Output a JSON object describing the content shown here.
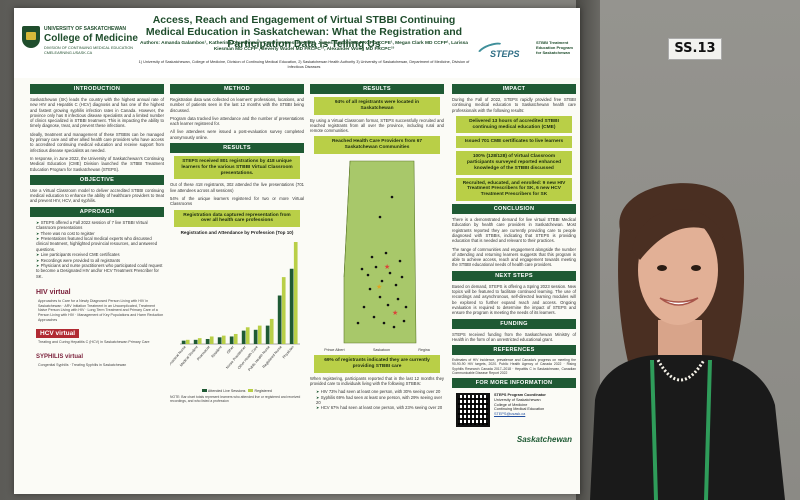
{
  "poster": {
    "university": "UNIVERSITY OF SASKATCHEWAN",
    "college": "College of Medicine",
    "college_sub": "DIVISION OF CONTINUING MEDICAL EDUCATION CMELEARNING.USASK.CA",
    "title": "Access, Reach and Engagement of Virtual STBBI Continuing Medical Education in Saskatchewan: What the Registration and Participation Data is Telling Us",
    "authors": "Authors: Amanda Galambos¹, Katherine Churchman¹, Carolyn Hoessler PhD¹, James Barton MD FRCPC CCPE¹, Megan Clark MD CCFP¹, Larissa Kiesman MD CCFP¹, Beverly Wudel MD FRCPC²³, Alexander Wong MD FRCPC²³",
    "affiliations": "1) University of Saskatchewan, College of Medicine, Division of Continuing Medical Education, 2) Saskatchewan Health Authority 3) University of Saskatchewan, Department of Medicine, Division of Infectious Diseases",
    "steps_logo": "STEPS",
    "steps_desc": "STBBI Treatment Education Program for Saskatchewan"
  },
  "introduction": {
    "heading": "INTRODUCTION",
    "p1": "Saskatchewan (SK) leads the country with the highest annual rate of new HIV and Hepatitis C (HCV) diagnosis and has one of the highest and fastest growing syphilis infection rates in Canada. However, the province only has 8 infectious disease specialists and a limited number of clinics specialized in STBBI treatment. This is impacting the ability to timely diagnose, treat, and prevent these infections.",
    "p2": "Ideally, treatment and management of these STBBIs can be managed by primary care and other allied health care providers who have access to accredited continuing medical education and receive support from infectious disease specialists as needed.",
    "p3": "In response, in June 2022, the University of Saskatchewan's Continuing Medical Education (CME) Division launched the STBBI Treatment Education Program for Saskatchewan (STEPS)."
  },
  "objective": {
    "heading": "OBJECTIVE",
    "p1": "Use a Virtual Classroom model to deliver accredited STBBI continuing medical education to enhance the ability of healthcare providers to treat and prevent HIV, HCV, and syphilis."
  },
  "approach": {
    "heading": "APPROACH",
    "bullets": [
      "STEPS offered a Fall 2022 session of 7 live STBBI Virtual Classroom presentations",
      "There was no cost to register",
      "Presentations featured local medical experts who discussed clinical treatment, highlighted provincial resources, and answered questions.",
      "Live participants received CME certificates",
      "Recordings were provided to all registrants",
      "Physicians and nurse practitioners who participated could request to become a Designated HIV and/or HCV Treatment Prescriber for SK."
    ],
    "hiv_logo": "HIV virtual",
    "hiv_topics": "Approaches to Care for a Newly Diagnosed Person Living with HIV in Saskatchewan · ARV Initiation Treatment in an Uncomplicated, Treatment Naive Person Living with HIV · Long Term Treatment and Primary Care of a Person Living with HIV · Management of Key Populations and Harm Reduction Approaches",
    "hcv_logo": "HCV virtual",
    "hcv_topics": "Treating and Curing Hepatitis C (HCV) in Saskatchewan Primary Care",
    "syphilis_logo": "SYPHILIS virtual",
    "syphilis_topics": "Congenital Syphilis · Treating Syphilis in Saskatchewan"
  },
  "method": {
    "heading": "METHOD",
    "p1": "Registration data was collected on learners' professions, locations, and number of patients seen in the last 12 months with the STBBI being discussed.",
    "p2": "Program data tracked live attendance and the number of presentations each learner registered for.",
    "p3": "All live attendees were issued a post-evaluation survey completed anonymously online."
  },
  "results_left": {
    "heading": "RESULTS",
    "hl1": "STEPS received 801 registrations by 418 unique learners for the various STBBI Virtual Classroom presentations.",
    "p1": "Out of these 418 registrants, 302 attended the live presentations (701 live attendees across all sessions)",
    "p2": "54% of the unique learners registered for two or more Virtual Classrooms",
    "hl2": "Registration data captured representation from over all health care professions"
  },
  "chart_data": {
    "type": "bar",
    "title": "Registration and Attendance by Profession (Top 10)",
    "categories": [
      "Licensed Practical Nurse",
      "Medical Student",
      "Pharmacist",
      "Resident",
      "Other",
      "Nurse Practitioner",
      "Other Health Care",
      "Public Health Nurse",
      "Registered Nurse",
      "Physician"
    ],
    "series": [
      {
        "name": "Attended Live Sessions",
        "values": [
          4,
          5,
          6,
          8,
          9,
          16,
          17,
          22,
          58,
          90
        ]
      },
      {
        "name": "Registered",
        "values": [
          5,
          7,
          9,
          10,
          12,
          20,
          22,
          30,
          80,
          122
        ]
      }
    ],
    "legend": [
      "Attended Live Sessions",
      "Registered"
    ],
    "note": "NOTE: Bar chart totals represent learners who attended live or registered and received recordings, and who listed a profession",
    "footnote": "Registration form was used to retrieve data to obtain all STBBI presentations"
  },
  "results_mid": {
    "heading": "RESULTS",
    "hl1": "94% of all registrants were located in Saskatchewan",
    "p1": "By using a Virtual Classroom format, STEPS successfully recruited and reached registrants from all over the province, including rural and remote communities.",
    "hl2": "Reached Health Care Providers from 67 Saskatchewan Communities",
    "map_legend": [
      "Prince Albert",
      "Saskatoon",
      "Regina"
    ],
    "hl3": "69% of registrants indicated they are currently providing STBBI care",
    "p2": "When registering, participants reported that in the last 12 months they provided care to individuals living with the following STBBIs:",
    "care": [
      "HIV 73% had seen at least one person, with 30% seeing over 20",
      "Syphilis 69% had seen at least one person, with 29% seeing over 20",
      "HCV 67% had seen at least one person, with 23% seeing over 20"
    ]
  },
  "impact": {
    "heading": "IMPACT",
    "p1": "During the Fall of 2022, STEPS rapidly provided free STBBI continuing medical education to Saskatchewan health care professionals with the following results:",
    "hl1": "Delivered 13 hours of accredited STBBI continuing medical education (CME)",
    "hl2": "Issued 701 CME certificates to live learners",
    "hl3": "100% (128/128) of Virtual Classroom participants surveyed reported enhanced knowledge of the STBBI discussed",
    "hl4": "Recruited, educated, and enrolled: 9 new HIV Treatment Prescribers for SK, 6 new HCV Treatment Prescribers for SK"
  },
  "conclusion": {
    "heading": "CONCLUSION",
    "p1": "There is a demonstrated demand for live virtual STBBI Medical Education by health care providers in Saskatchewan. Most registrants reported they are currently providing care to people diagnosed with STBBIs, indicating that STEPS is providing education that is needed and relevant to their practices.",
    "p2": "The range of communities and engagement alongside the number of attending and returning learners suggests that this program is able to achieve access, reach and engagement towards meeting the STBBI educational needs of health care providers."
  },
  "next_steps": {
    "heading": "NEXT STEPS",
    "p1": "Based on demand, STEPS is offering a Spring 2023 session. New topics will be featured to facilitate continued learning. The use of recordings and asynchronous, self-directed learning modules will be explored to further expand reach and access. Ongoing evaluation is required to determine the impact of STEPS and ensure the program is meeting the needs of its learners."
  },
  "funding": {
    "heading": "FUNDING",
    "p1": "STEPS received funding from the Saskatchewan Ministry of Health in the form of an unrestricted educational grant."
  },
  "references": {
    "heading": "REFERENCES",
    "items": "Estimates of HIV incidence, prevalence and Canada's progress on meeting the 90-90-90 HIV targets, 2020. Public Health Agency of Canada 2022 · Rising Syphilis Research Canada 2017–2018 · Hepatitis C in Saskatchewan, Canadian Communicable Disease Report 2022"
  },
  "more_info": {
    "heading": "FOR MORE INFORMATION",
    "contact_title": "STEPS Program Coordinator",
    "contact_lines": [
      "University of Saskatchewan",
      "College of Medicine",
      "Continuing Medical Education"
    ],
    "email": "STEPS@usask.ca",
    "sask_logo": "Saskatchewan"
  },
  "booth": {
    "number": "SS.13"
  },
  "colors": {
    "green_dark": "#1f5a34",
    "green_highlight": "#b9cf47",
    "map_fill": "#a8c86a"
  }
}
